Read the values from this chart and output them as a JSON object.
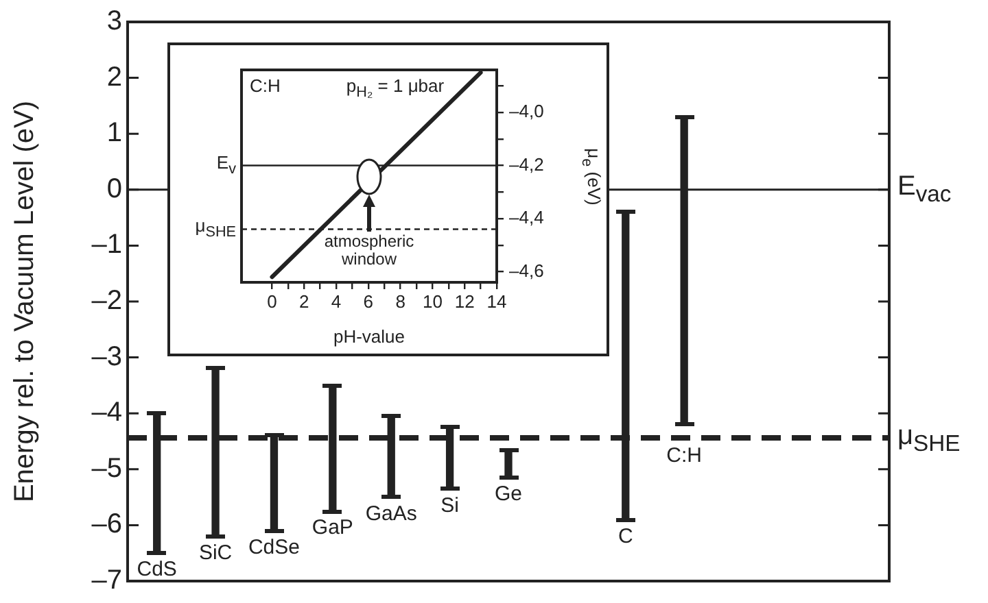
{
  "chart_data": [
    {
      "type": "bar",
      "ylabel": "Energy rel. to Vacuum Level (eV)",
      "categories": [
        "CdS",
        "SiC",
        "CdSe",
        "GaP",
        "GaAs",
        "Si",
        "Ge",
        null,
        "C",
        "C:H",
        null,
        null,
        null
      ],
      "base": [
        -6.5,
        -6.2,
        -6.1,
        -5.75,
        -5.5,
        -5.35,
        -5.15,
        null,
        -5.9,
        -4.2,
        null,
        null,
        null
      ],
      "values": [
        2.5,
        3.0,
        1.7,
        2.25,
        1.45,
        1.1,
        0.5,
        null,
        5.5,
        5.5,
        null,
        null,
        null
      ],
      "color": "#222222",
      "ylim": [
        -7,
        3
      ],
      "yticks": [
        {
          "value": -7,
          "label": "–7"
        },
        {
          "value": -6,
          "label": "–6"
        },
        {
          "value": -5,
          "label": "–5"
        },
        {
          "value": -4,
          "label": "–4"
        },
        {
          "value": -3,
          "label": "–3"
        },
        {
          "value": -2,
          "label": "–2"
        },
        {
          "value": -1,
          "label": "–1"
        },
        0,
        1,
        2,
        3
      ],
      "tick_labels": "y",
      "grid": false,
      "ref_lines": [
        {
          "axis": "y",
          "value": 0,
          "label": "E$_{vac}$",
          "line_style": "solid"
        },
        {
          "axis": "y",
          "value": -4.44,
          "label": "μ$_{SHE}$",
          "line_style": "dashed"
        }
      ]
    },
    {
      "type": "line",
      "xlabel": "pH-value",
      "ylabel": "μ$_{e}$ (eV)",
      "x": [
        0,
        13
      ],
      "series": [
        {
          "color": "#222222",
          "values": [
            -4.62,
            -3.85
          ]
        }
      ],
      "xlim": [
        -1.9,
        14
      ],
      "xticks": [
        0,
        {
          "value": 1,
          "label": null
        },
        2,
        {
          "value": 3,
          "label": null
        },
        4,
        {
          "value": 5,
          "label": null
        },
        6,
        {
          "value": 7,
          "label": null
        },
        8,
        {
          "value": 9,
          "label": null
        },
        10,
        {
          "value": 11,
          "label": null
        },
        12,
        {
          "value": 13,
          "label": null
        },
        14
      ],
      "ylim": [
        -4.64,
        -3.84
      ],
      "yticks": [
        {
          "value": -3.9,
          "label": null
        },
        {
          "value": -4.0,
          "label": "–4,0"
        },
        {
          "value": -4.1,
          "label": null
        },
        {
          "value": -4.2,
          "label": "–4,2"
        },
        {
          "value": -4.3,
          "label": null
        },
        {
          "value": -4.4,
          "label": "–4,4"
        },
        {
          "value": -4.5,
          "label": null
        },
        {
          "value": -4.6,
          "label": "–4,6"
        }
      ],
      "marker": "none",
      "grid": false,
      "ref_lines": [
        {
          "axis": "y",
          "value": -4.2,
          "label": "E$_{v}$",
          "line_style": "solid"
        },
        {
          "axis": "y",
          "value": -4.44,
          "label": "μ$_{SHE}$",
          "line_style": "dashed"
        }
      ],
      "annotations": [
        "C:H",
        "p$_{H₂}$ = 1 μbar",
        "atmospheric window"
      ]
    }
  ]
}
